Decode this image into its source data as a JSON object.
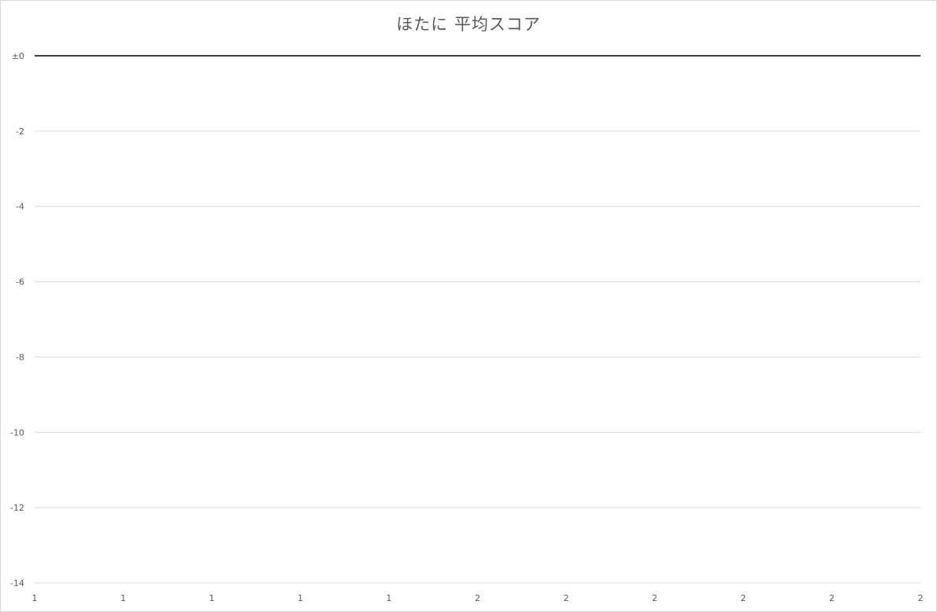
{
  "chart_data": {
    "type": "line",
    "title": "ほたに 平均スコア",
    "xlabel": "",
    "ylabel": "",
    "x_tick_labels": [
      "1",
      "1",
      "1",
      "1",
      "1",
      "2",
      "2",
      "2",
      "2",
      "2",
      "2"
    ],
    "y_tick_labels": [
      "±0",
      "-2",
      "-4",
      "-6",
      "-8",
      "-10",
      "-12",
      "-14"
    ],
    "y_ticks": [
      0,
      -2,
      -4,
      -6,
      -8,
      -10,
      -12,
      -14
    ],
    "ylim": [
      -14,
      0
    ],
    "xlim": [
      1,
      2
    ],
    "grid": true,
    "legend": "none",
    "series": [
      {
        "x": [
          1,
          2
        ],
        "values": [
          0,
          0
        ],
        "color": "#404040"
      }
    ]
  }
}
